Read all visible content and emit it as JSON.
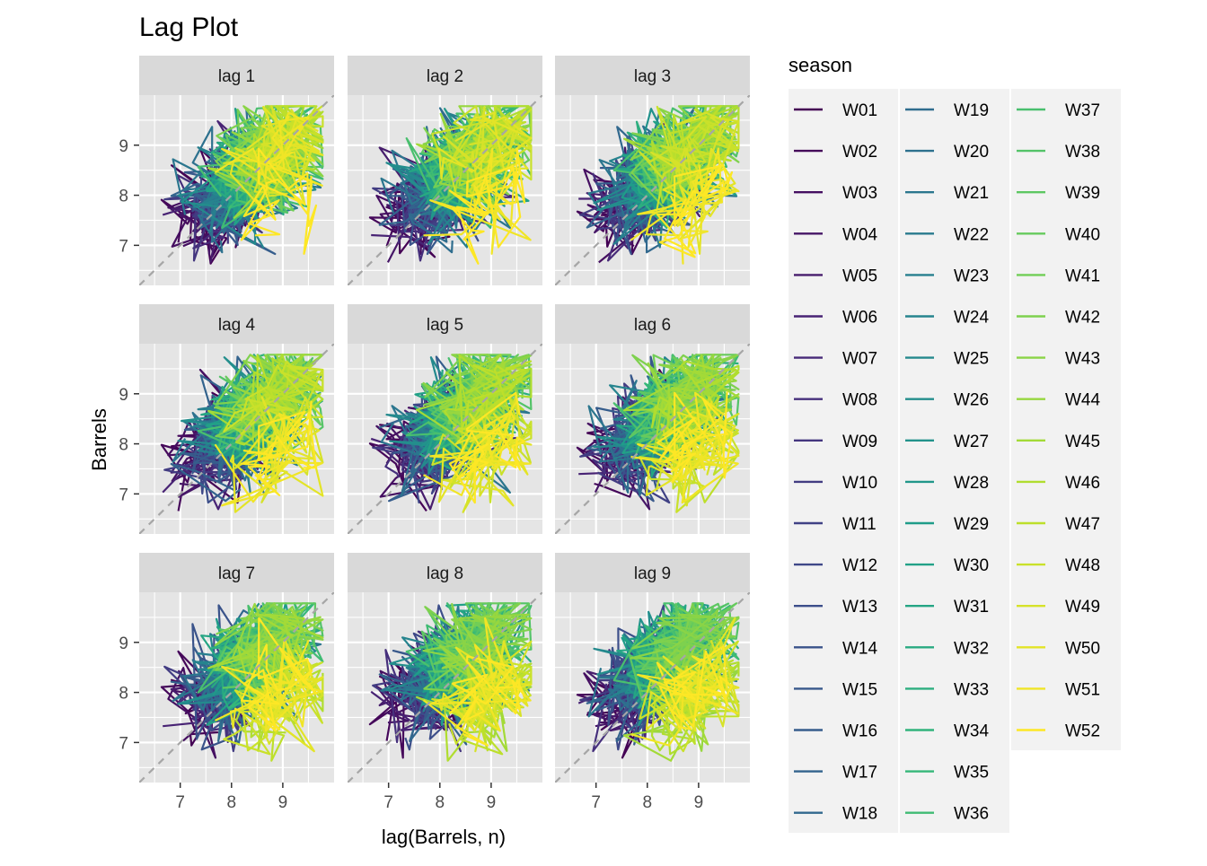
{
  "chart_data": {
    "type": "line",
    "subtype": "lag-plot",
    "title": "Lag Plot",
    "xlabel": "lag(Barrels, n)",
    "ylabel": "Barrels",
    "panels": [
      "lag 1",
      "lag 2",
      "lag 3",
      "lag 4",
      "lag 5",
      "lag 6",
      "lag 7",
      "lag 8",
      "lag 9"
    ],
    "lags": [
      1,
      2,
      3,
      4,
      5,
      6,
      7,
      8,
      9
    ],
    "facet_grid": {
      "rows": 3,
      "cols": 3
    },
    "xlim": [
      6.2,
      10.0
    ],
    "ylim": [
      6.2,
      10.0
    ],
    "x_ticks": [
      7,
      8,
      9
    ],
    "y_ticks": [
      7,
      8,
      9
    ],
    "x_tick_labels": [
      "7",
      "8",
      "9"
    ],
    "y_tick_labels": [
      "7",
      "8",
      "9"
    ],
    "reference_line": "y = x (dashed, grey)",
    "grid": true,
    "panel_background": "#e5e5e5",
    "strip_background": "#d9d9d9",
    "legend": {
      "title": "season",
      "placement": "right",
      "columns": 3,
      "entries": [
        "W01",
        "W02",
        "W03",
        "W04",
        "W05",
        "W06",
        "W07",
        "W08",
        "W09",
        "W10",
        "W11",
        "W12",
        "W13",
        "W14",
        "W15",
        "W16",
        "W17",
        "W18",
        "W19",
        "W20",
        "W21",
        "W22",
        "W23",
        "W24",
        "W25",
        "W26",
        "W27",
        "W28",
        "W29",
        "W30",
        "W31",
        "W32",
        "W33",
        "W34",
        "W35",
        "W36",
        "W37",
        "W38",
        "W39",
        "W40",
        "W41",
        "W42",
        "W43",
        "W44",
        "W45",
        "W46",
        "W47",
        "W48",
        "W49",
        "W50",
        "W51",
        "W52"
      ]
    },
    "color_scale": "viridis",
    "series_summary": {
      "x_range": [
        6.3,
        9.8
      ],
      "y_range": [
        6.3,
        9.8
      ],
      "relationship": "strong positive; early-season weeks (dark purple) lower, late-season weeks (yellow) higher"
    }
  }
}
